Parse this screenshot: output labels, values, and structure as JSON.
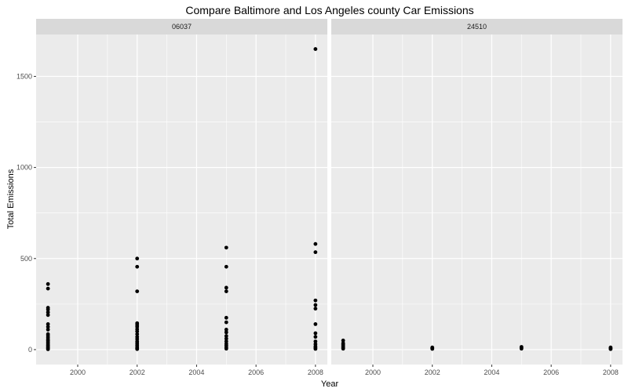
{
  "chart_data": {
    "type": "scatter",
    "title": "Compare Baltimore and Los Angeles county Car Emissions",
    "xlabel": "Year",
    "ylabel": "Total Emissions",
    "xlim": [
      1998.6,
      2008.4
    ],
    "ylim": [
      -82,
      1730
    ],
    "x_ticks": [
      2000,
      2002,
      2004,
      2006,
      2008
    ],
    "y_ticks": [
      0,
      500,
      1000,
      1500
    ],
    "grid": true,
    "colors": {
      "panel": "#ebebeb",
      "strip": "#d9d9d9",
      "grid": "#ffffff",
      "point": "#000000"
    },
    "facets": [
      {
        "label": "06037",
        "points": [
          {
            "x": 1999,
            "y": 360
          },
          {
            "x": 1999,
            "y": 335
          },
          {
            "x": 1999,
            "y": 230
          },
          {
            "x": 1999,
            "y": 220
          },
          {
            "x": 1999,
            "y": 205
          },
          {
            "x": 1999,
            "y": 190
          },
          {
            "x": 1999,
            "y": 140
          },
          {
            "x": 1999,
            "y": 125
          },
          {
            "x": 1999,
            "y": 110
          },
          {
            "x": 1999,
            "y": 85
          },
          {
            "x": 1999,
            "y": 75
          },
          {
            "x": 1999,
            "y": 65
          },
          {
            "x": 1999,
            "y": 55
          },
          {
            "x": 1999,
            "y": 48
          },
          {
            "x": 1999,
            "y": 40
          },
          {
            "x": 1999,
            "y": 32
          },
          {
            "x": 1999,
            "y": 25
          },
          {
            "x": 1999,
            "y": 18
          },
          {
            "x": 1999,
            "y": 12
          },
          {
            "x": 1999,
            "y": 6
          },
          {
            "x": 1999,
            "y": 2
          },
          {
            "x": 2002,
            "y": 500
          },
          {
            "x": 2002,
            "y": 455
          },
          {
            "x": 2002,
            "y": 320
          },
          {
            "x": 2002,
            "y": 145
          },
          {
            "x": 2002,
            "y": 135
          },
          {
            "x": 2002,
            "y": 125
          },
          {
            "x": 2002,
            "y": 112
          },
          {
            "x": 2002,
            "y": 100
          },
          {
            "x": 2002,
            "y": 85
          },
          {
            "x": 2002,
            "y": 70
          },
          {
            "x": 2002,
            "y": 58
          },
          {
            "x": 2002,
            "y": 45
          },
          {
            "x": 2002,
            "y": 35
          },
          {
            "x": 2002,
            "y": 25
          },
          {
            "x": 2002,
            "y": 15
          },
          {
            "x": 2002,
            "y": 8
          },
          {
            "x": 2002,
            "y": 3
          },
          {
            "x": 2005,
            "y": 560
          },
          {
            "x": 2005,
            "y": 455
          },
          {
            "x": 2005,
            "y": 340
          },
          {
            "x": 2005,
            "y": 320
          },
          {
            "x": 2005,
            "y": 175
          },
          {
            "x": 2005,
            "y": 150
          },
          {
            "x": 2005,
            "y": 110
          },
          {
            "x": 2005,
            "y": 95
          },
          {
            "x": 2005,
            "y": 75
          },
          {
            "x": 2005,
            "y": 60
          },
          {
            "x": 2005,
            "y": 45
          },
          {
            "x": 2005,
            "y": 32
          },
          {
            "x": 2005,
            "y": 22
          },
          {
            "x": 2005,
            "y": 12
          },
          {
            "x": 2005,
            "y": 5
          },
          {
            "x": 2008,
            "y": 1650
          },
          {
            "x": 2008,
            "y": 580
          },
          {
            "x": 2008,
            "y": 535
          },
          {
            "x": 2008,
            "y": 270
          },
          {
            "x": 2008,
            "y": 245
          },
          {
            "x": 2008,
            "y": 225
          },
          {
            "x": 2008,
            "y": 140
          },
          {
            "x": 2008,
            "y": 90
          },
          {
            "x": 2008,
            "y": 70
          },
          {
            "x": 2008,
            "y": 45
          },
          {
            "x": 2008,
            "y": 30
          },
          {
            "x": 2008,
            "y": 18
          },
          {
            "x": 2008,
            "y": 10
          },
          {
            "x": 2008,
            "y": 4
          }
        ]
      },
      {
        "label": "24510",
        "points": [
          {
            "x": 1999,
            "y": 50
          },
          {
            "x": 1999,
            "y": 35
          },
          {
            "x": 1999,
            "y": 28
          },
          {
            "x": 1999,
            "y": 20
          },
          {
            "x": 1999,
            "y": 12
          },
          {
            "x": 1999,
            "y": 5
          },
          {
            "x": 2002,
            "y": 12
          },
          {
            "x": 2002,
            "y": 8
          },
          {
            "x": 2002,
            "y": 4
          },
          {
            "x": 2005,
            "y": 15
          },
          {
            "x": 2005,
            "y": 10
          },
          {
            "x": 2005,
            "y": 5
          },
          {
            "x": 2008,
            "y": 12
          },
          {
            "x": 2008,
            "y": 7
          },
          {
            "x": 2008,
            "y": 3
          }
        ]
      }
    ]
  }
}
